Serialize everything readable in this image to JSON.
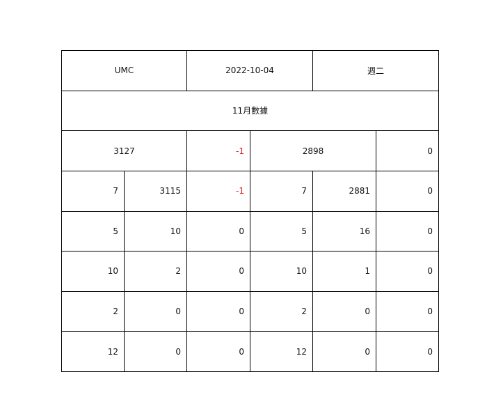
{
  "header": {
    "ticker": "UMC",
    "date": "2022-10-04",
    "weekday": "週二"
  },
  "section_title": "11月數據",
  "summary": {
    "left_total": "3127",
    "left_change": "-1",
    "right_total": "2898",
    "right_change": "0"
  },
  "rows": [
    [
      "7",
      "3115",
      "-1",
      "7",
      "2881",
      "0"
    ],
    [
      "5",
      "10",
      "0",
      "5",
      "16",
      "0"
    ],
    [
      "10",
      "2",
      "0",
      "10",
      "1",
      "0"
    ],
    [
      "2",
      "0",
      "0",
      "2",
      "0",
      "0"
    ],
    [
      "12",
      "0",
      "0",
      "12",
      "0",
      "0"
    ]
  ],
  "colors": {
    "negative": "#e02020",
    "grid": "#000000"
  }
}
